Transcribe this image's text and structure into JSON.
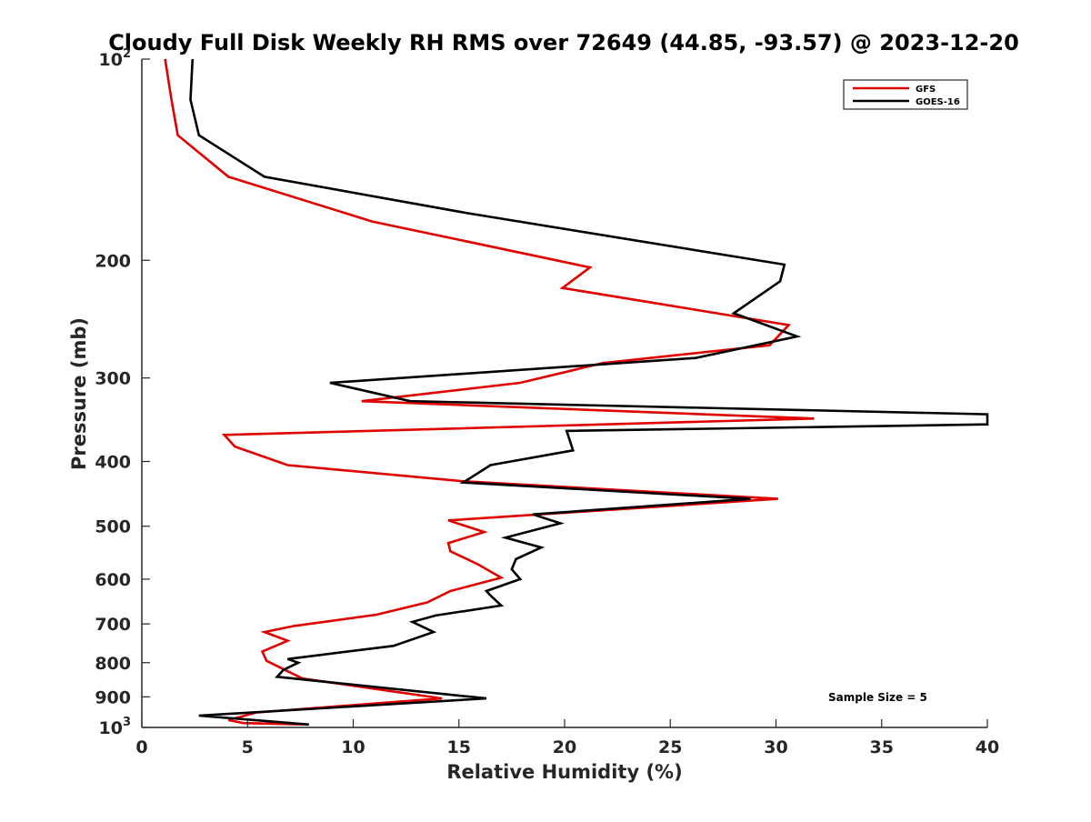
{
  "chart_data": {
    "type": "line",
    "title": "Cloudy Full Disk Weekly RH RMS over 72649 (44.85, -93.57) @ 2023-12-20",
    "xlabel": "Relative Humidity (%)",
    "ylabel": "Pressure (mb)",
    "xlim": [
      0,
      40
    ],
    "ylim": [
      100,
      1000
    ],
    "y_scale": "log",
    "y_reversed": true,
    "grid": false,
    "legend_position": "top-right",
    "x_ticks": [
      "0",
      "5",
      "10",
      "15",
      "20",
      "25",
      "30",
      "35",
      "40"
    ],
    "y_ticks": [
      {
        "value": 100,
        "base": "10",
        "exp": "2"
      },
      {
        "value": 200,
        "label": "200"
      },
      {
        "value": 300,
        "label": "300"
      },
      {
        "value": 400,
        "label": "400"
      },
      {
        "value": 500,
        "label": "500"
      },
      {
        "value": 600,
        "label": "600"
      },
      {
        "value": 700,
        "label": "700"
      },
      {
        "value": 800,
        "label": "800"
      },
      {
        "value": 900,
        "label": "900"
      },
      {
        "value": 1000,
        "base": "10",
        "exp": "3"
      }
    ],
    "series": [
      {
        "name": "GFS",
        "color": "#e00000",
        "points": [
          [
            1.1,
            100
          ],
          [
            1.4,
            115
          ],
          [
            1.7,
            130
          ],
          [
            4.1,
            150
          ],
          [
            10.9,
            175
          ],
          [
            21.2,
            205
          ],
          [
            19.9,
            220
          ],
          [
            30.6,
            250
          ],
          [
            29.7,
            268
          ],
          [
            21.8,
            285
          ],
          [
            17.9,
            305
          ],
          [
            10.4,
            325
          ],
          [
            31.8,
            345
          ],
          [
            3.9,
            365
          ],
          [
            4.4,
            380
          ],
          [
            6.9,
            405
          ],
          [
            15.1,
            428
          ],
          [
            30.1,
            455
          ],
          [
            14.5,
            490
          ],
          [
            16.2,
            510
          ],
          [
            14.5,
            530
          ],
          [
            14.6,
            545
          ],
          [
            15.9,
            570
          ],
          [
            17.0,
            597
          ],
          [
            14.6,
            625
          ],
          [
            13.5,
            650
          ],
          [
            11.1,
            678
          ],
          [
            7.2,
            705
          ],
          [
            5.8,
            720
          ],
          [
            6.9,
            742
          ],
          [
            5.7,
            770
          ],
          [
            5.9,
            795
          ],
          [
            7.6,
            845
          ],
          [
            14.2,
            905
          ],
          [
            5.4,
            950
          ],
          [
            4.1,
            975
          ],
          [
            4.8,
            985
          ],
          [
            7.9,
            990
          ]
        ]
      },
      {
        "name": "GOES-16",
        "color": "#000000",
        "points": [
          [
            2.4,
            100
          ],
          [
            2.3,
            115
          ],
          [
            2.7,
            130
          ],
          [
            5.8,
            150
          ],
          [
            15.4,
            170
          ],
          [
            30.4,
            203
          ],
          [
            30.2,
            215
          ],
          [
            28.0,
            240
          ],
          [
            31.0,
            260
          ],
          [
            26.2,
            280
          ],
          [
            8.9,
            305
          ],
          [
            12.7,
            325
          ],
          [
            40.0,
            340
          ],
          [
            40.0,
            352
          ],
          [
            20.1,
            360
          ],
          [
            20.4,
            385
          ],
          [
            16.5,
            405
          ],
          [
            15.2,
            430
          ],
          [
            28.8,
            455
          ],
          [
            18.5,
            480
          ],
          [
            19.8,
            495
          ],
          [
            17.2,
            520
          ],
          [
            18.9,
            538
          ],
          [
            17.7,
            560
          ],
          [
            17.5,
            580
          ],
          [
            17.9,
            600
          ],
          [
            16.3,
            625
          ],
          [
            16.5,
            635
          ],
          [
            17.0,
            657
          ],
          [
            13.9,
            680
          ],
          [
            12.8,
            695
          ],
          [
            13.8,
            720
          ],
          [
            11.9,
            755
          ],
          [
            6.9,
            790
          ],
          [
            7.4,
            800
          ],
          [
            6.7,
            820
          ],
          [
            6.4,
            840
          ],
          [
            16.3,
            905
          ],
          [
            2.7,
            960
          ],
          [
            7.9,
            990
          ]
        ]
      }
    ],
    "annotations": [
      "Sample Size = 5"
    ]
  }
}
